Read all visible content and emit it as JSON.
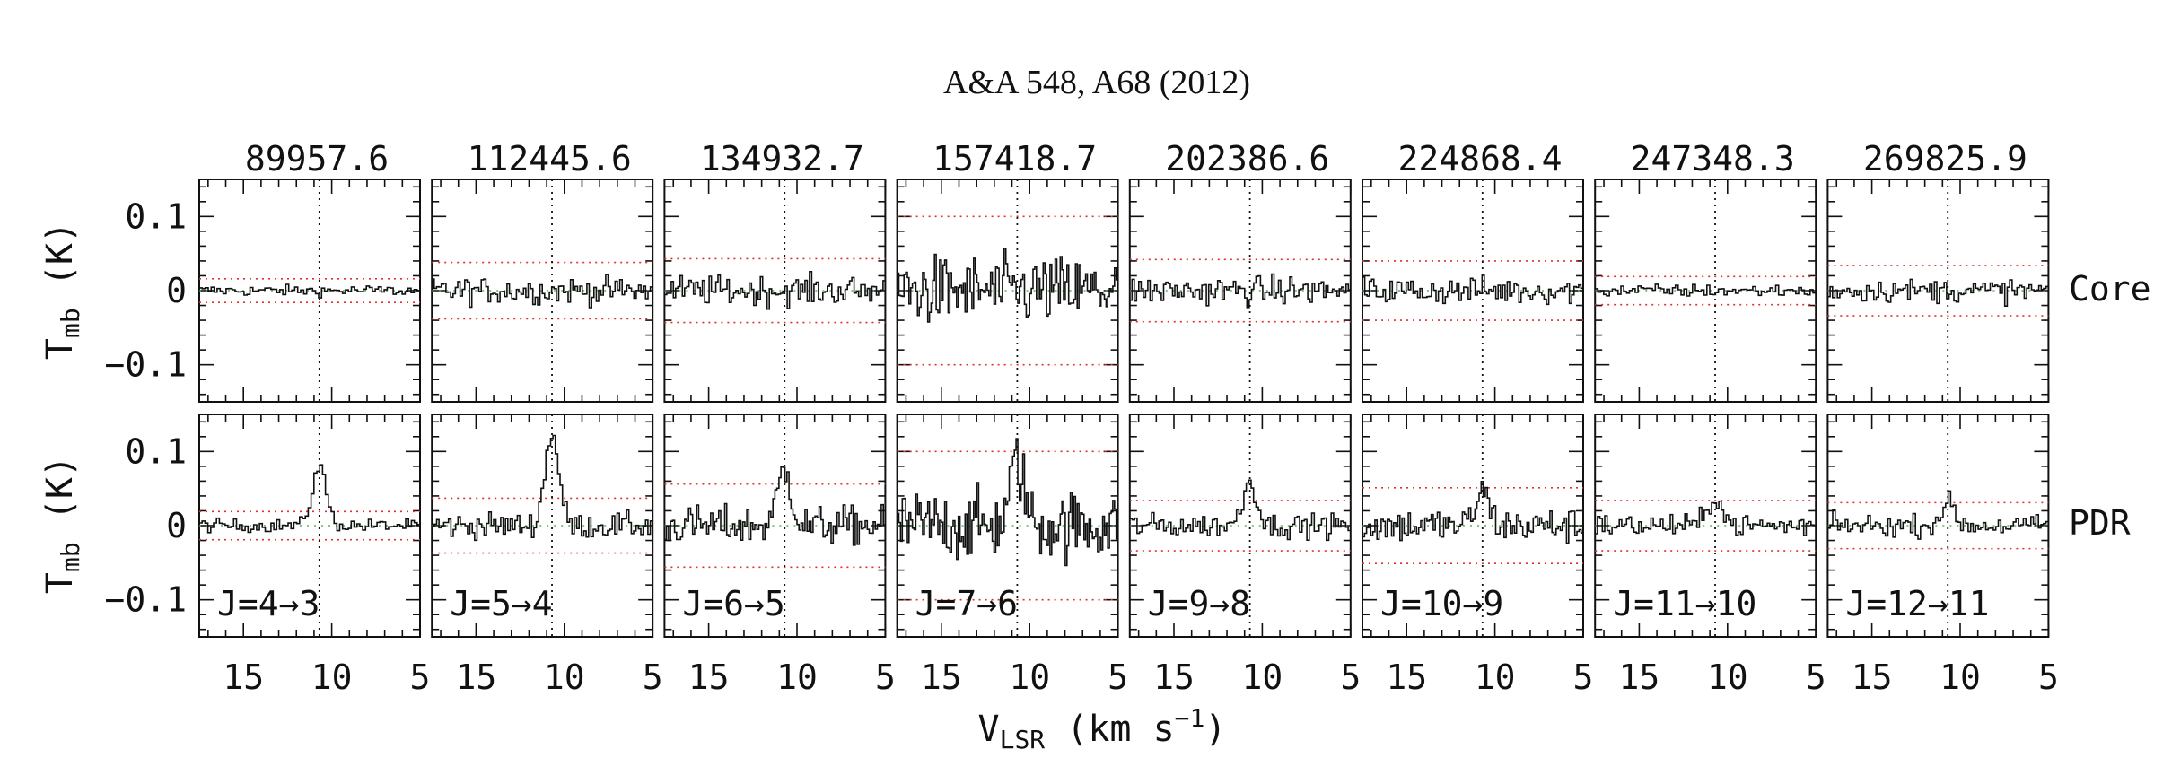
{
  "header": {
    "journal": "A&A 548, A68 (2012)"
  },
  "chart_data": {
    "type": "line",
    "x_label": "V",
    "x_label_sub": "LSR",
    "x_label_units": " (km s",
    "x_label_sup": "−1",
    "x_label_close": ")",
    "y_label": "T",
    "y_label_sub": "mb",
    "y_label_units": " (K)",
    "xlim": [
      17.5,
      5
    ],
    "ylim": [
      -0.15,
      0.15
    ],
    "x_ticks": [
      "15",
      "10",
      "5"
    ],
    "x_tick_values": [
      15,
      10,
      5
    ],
    "y_ticks": [
      "0.1",
      "0",
      "−0.1"
    ],
    "y_tick_values": [
      0.1,
      0,
      -0.1
    ],
    "systemic_velocity": 10.7,
    "rows": [
      "Core",
      "PDR"
    ],
    "columns": [
      {
        "frequency": "89957.6",
        "transition": "J=4→3",
        "rms_core": 0.016,
        "rms_pdr": 0.019,
        "peak_pdr": 0.08
      },
      {
        "frequency": "112445.6",
        "transition": "J=5→4",
        "rms_core": 0.038,
        "rms_pdr": 0.037,
        "peak_pdr": 0.125
      },
      {
        "frequency": "134932.7",
        "transition": "J=6→5",
        "rms_core": 0.043,
        "rms_pdr": 0.056,
        "peak_pdr": 0.075
      },
      {
        "frequency": "157418.7",
        "transition": "J=7→6",
        "rms_core": 0.1,
        "rms_pdr": 0.1,
        "peak_pdr": 0.085
      },
      {
        "frequency": "202386.6",
        "transition": "J=9→8",
        "rms_core": 0.042,
        "rms_pdr": 0.034,
        "peak_pdr": 0.06
      },
      {
        "frequency": "224868.4",
        "transition": "J=10→9",
        "rms_core": 0.04,
        "rms_pdr": 0.051,
        "peak_pdr": 0.045
      },
      {
        "frequency": "247348.3",
        "transition": "J=11→10",
        "rms_core": 0.019,
        "rms_pdr": 0.034,
        "peak_pdr": 0.04
      },
      {
        "frequency": "269825.9",
        "transition": "J=12→11",
        "rms_core": 0.034,
        "rms_pdr": 0.031,
        "peak_pdr": 0.03
      }
    ]
  }
}
